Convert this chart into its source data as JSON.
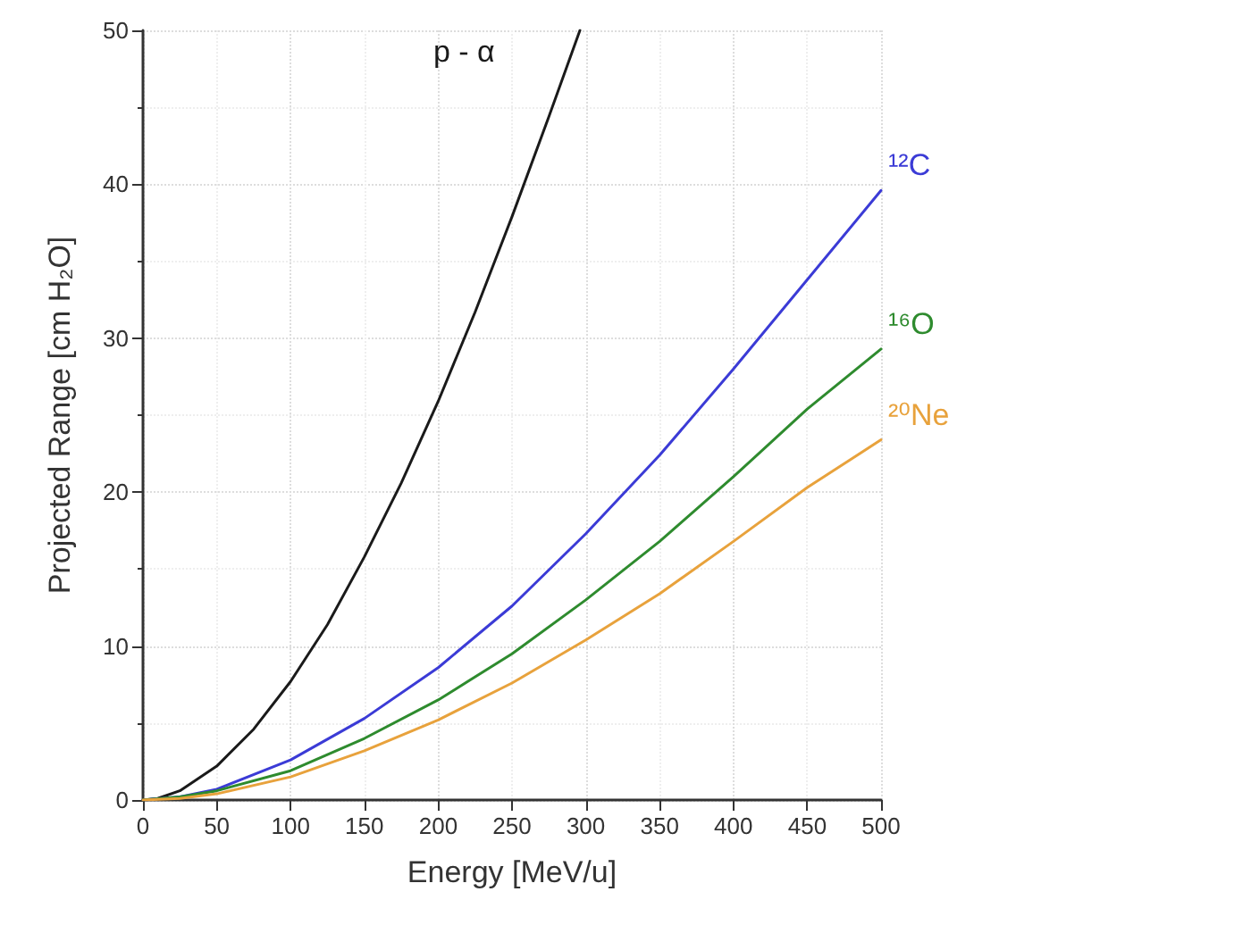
{
  "chart_data": {
    "type": "line",
    "xlabel": "Energy [MeV/u]",
    "ylabel": "Projected Range [cm H₂O]",
    "xlim": [
      0,
      500
    ],
    "ylim": [
      0,
      50
    ],
    "xticks": [
      0,
      50,
      100,
      150,
      200,
      250,
      300,
      350,
      400,
      450,
      500
    ],
    "yticks": [
      0,
      10,
      20,
      30,
      40,
      50
    ],
    "grid": true,
    "legend": false,
    "line_style": "solid",
    "series": [
      {
        "name": "p - α",
        "color": "#1a1a1a",
        "x": [
          0,
          10,
          25,
          50,
          75,
          100,
          125,
          150,
          175,
          200,
          225,
          250,
          275,
          296
        ],
        "values": [
          0,
          0.1,
          0.6,
          2.2,
          4.6,
          7.7,
          11.4,
          15.8,
          20.6,
          25.9,
          31.7,
          37.9,
          44.4,
          50
        ]
      },
      {
        "name": "¹²C",
        "color": "#3b3bd6",
        "x": [
          0,
          25,
          50,
          100,
          150,
          200,
          250,
          300,
          350,
          400,
          450,
          500
        ],
        "values": [
          0,
          0.2,
          0.7,
          2.6,
          5.3,
          8.6,
          12.6,
          17.3,
          22.4,
          28,
          33.8,
          39.6
        ]
      },
      {
        "name": "¹⁶O",
        "color": "#2e8b2e",
        "x": [
          0,
          25,
          50,
          100,
          150,
          200,
          250,
          300,
          350,
          400,
          450,
          500
        ],
        "values": [
          0,
          0.2,
          0.6,
          1.9,
          4,
          6.5,
          9.5,
          13,
          16.8,
          21,
          25.4,
          29.3
        ]
      },
      {
        "name": "²⁰Ne",
        "color": "#e8a23c",
        "x": [
          0,
          25,
          50,
          100,
          150,
          200,
          250,
          300,
          350,
          400,
          450,
          500
        ],
        "values": [
          0,
          0.1,
          0.4,
          1.5,
          3.2,
          5.2,
          7.6,
          10.4,
          13.4,
          16.8,
          20.3,
          23.4
        ]
      }
    ]
  }
}
